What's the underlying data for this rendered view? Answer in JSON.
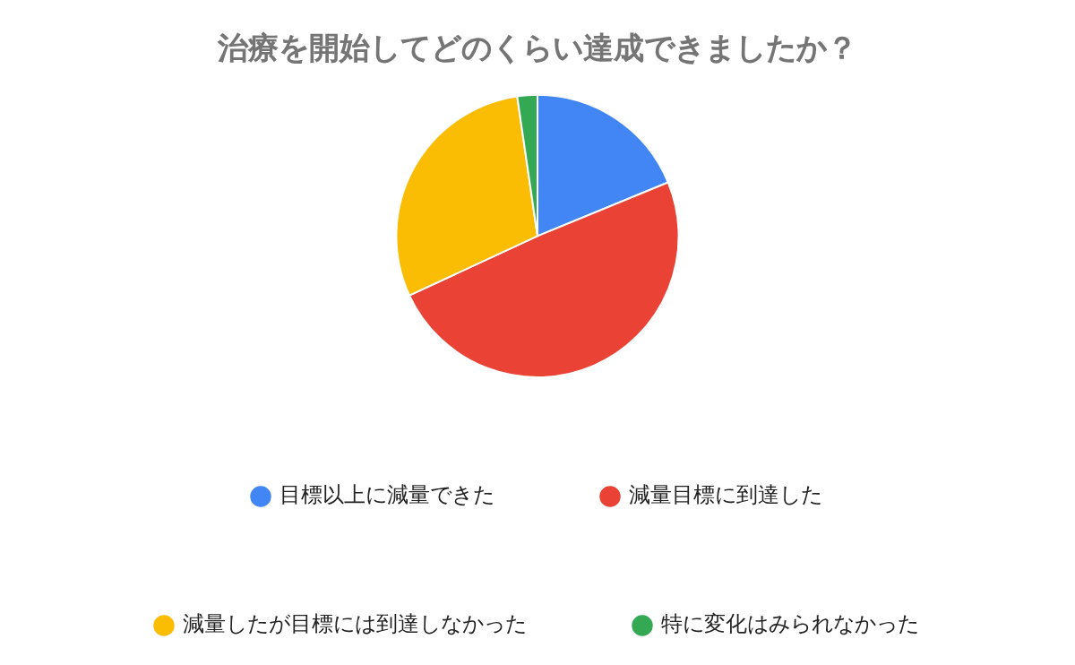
{
  "chart_data": {
    "type": "pie",
    "title": "治療を開始してどのくらい達成できましたか？",
    "categories": [
      "目標以上に減量できた",
      "減量目標に到達した",
      "減量したが目標には到達しなかった",
      "特に変化はみられなかった"
    ],
    "values": [
      18.8,
      49.3,
      29.6,
      2.3
    ],
    "colors": [
      "#4285f4",
      "#ea4335",
      "#fbbc04",
      "#34a853"
    ],
    "legend": "bottom"
  }
}
